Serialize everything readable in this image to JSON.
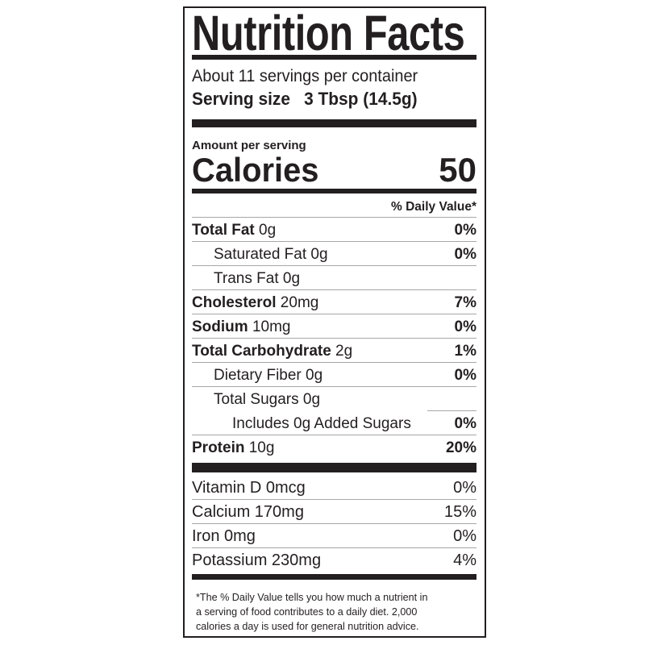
{
  "title": "Nutrition Facts",
  "servings_per_container": "About 11 servings per container",
  "serving_size_label": "Serving size",
  "serving_size_value": "3 Tbsp (14.5g)",
  "amount_per_serving": "Amount per serving",
  "calories_label": "Calories",
  "calories_value": "50",
  "daily_value_header": "% Daily Value*",
  "nutrients": [
    {
      "name": "Total Fat",
      "amount": " 0g",
      "dv": "0%",
      "bold": true,
      "indent": 0
    },
    {
      "name": "",
      "amount": "Saturated Fat 0g",
      "dv": "0%",
      "bold": false,
      "indent": 1
    },
    {
      "name": "",
      "amount": "Trans Fat 0g",
      "dv": "",
      "bold": false,
      "indent": 1
    },
    {
      "name": "Cholesterol",
      "amount": " 20mg",
      "dv": "7%",
      "bold": true,
      "indent": 0
    },
    {
      "name": "Sodium",
      "amount": " 10mg",
      "dv": "0%",
      "bold": true,
      "indent": 0
    },
    {
      "name": "Total Carbohydrate",
      "amount": " 2g",
      "dv": "1%",
      "bold": true,
      "indent": 0
    },
    {
      "name": "",
      "amount": "Dietary Fiber 0g",
      "dv": "0%",
      "bold": false,
      "indent": 1
    },
    {
      "name": "",
      "amount": "Total Sugars 0g",
      "dv": "",
      "bold": false,
      "indent": 1
    },
    {
      "name": "",
      "amount": "Includes 0g Added Sugars",
      "dv": "0%",
      "bold": false,
      "indent": 2
    },
    {
      "name": "Protein",
      "amount": " 10g",
      "dv": "20%",
      "bold": true,
      "indent": 0
    }
  ],
  "vitamins": [
    {
      "name": "Vitamin D 0mcg",
      "dv": "0%"
    },
    {
      "name": "Calcium 170mg",
      "dv": "15%"
    },
    {
      "name": "Iron 0mg",
      "dv": "0%"
    },
    {
      "name": "Potassium 230mg",
      "dv": "4%"
    }
  ],
  "footnote_lines": [
    "*The % Daily Value tells you how much a nutrient in",
    "a serving of food contributes to a daily diet. 2,000",
    "calories a day is used for general nutrition advice."
  ],
  "colors": {
    "ink": "#231f20",
    "rule": "#a7a7a7"
  }
}
